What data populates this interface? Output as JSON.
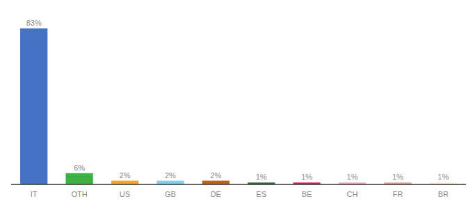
{
  "chart_data": {
    "type": "bar",
    "categories": [
      "IT",
      "OTH",
      "US",
      "GB",
      "DE",
      "ES",
      "BE",
      "CH",
      "FR",
      "BR"
    ],
    "values": [
      83,
      6,
      2,
      2,
      2,
      1,
      1,
      1,
      1,
      1
    ],
    "value_labels": [
      "83%",
      "6%",
      "2%",
      "2%",
      "2%",
      "1%",
      "1%",
      "1%",
      "1%",
      "1%"
    ],
    "colors": [
      "#4472c4",
      "#3cb043",
      "#f5a623",
      "#87ceeb",
      "#b8651a",
      "#2d6a2d",
      "#e0195a",
      "#f4a7b9",
      "#e8a090",
      "#f5f0d0"
    ],
    "ylim": [
      0,
      90
    ],
    "data_labels": true,
    "tick_labels": "x"
  }
}
